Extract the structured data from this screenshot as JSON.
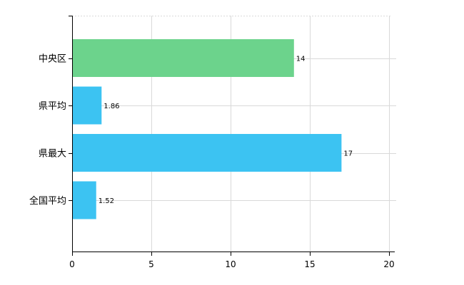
{
  "chart_data": {
    "type": "bar",
    "orientation": "horizontal",
    "categories": [
      "中央区",
      "県平均",
      "県最大",
      "全国平均"
    ],
    "values": [
      14,
      1.86,
      17,
      1.52
    ],
    "value_labels": [
      "14",
      "1.86",
      "17",
      "1.52"
    ],
    "bar_colors": [
      "#6cd38c",
      "#3cc3f2",
      "#3cc3f2",
      "#3cc3f2"
    ],
    "xlim": [
      0,
      20
    ],
    "x_ticks": [
      0,
      5,
      10,
      15,
      20
    ],
    "x_tick_labels": [
      "0",
      "5",
      "10",
      "15",
      "20"
    ],
    "title": "",
    "xlabel": "",
    "ylabel": "",
    "grid": true,
    "legend": "none"
  }
}
